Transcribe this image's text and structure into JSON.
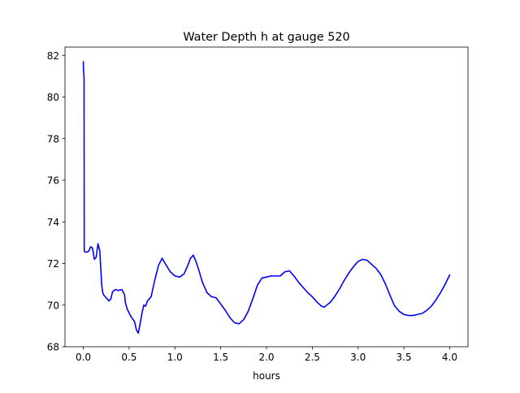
{
  "chart_data": {
    "type": "line",
    "title": "Water Depth h at gauge 520",
    "xlabel": "hours",
    "ylabel": "",
    "xlim": [
      -0.2,
      4.2
    ],
    "ylim": [
      68,
      82.4
    ],
    "xticks": [
      0.0,
      0.5,
      1.0,
      1.5,
      2.0,
      2.5,
      3.0,
      3.5,
      4.0
    ],
    "xtick_labels": [
      "0.0",
      "0.5",
      "1.0",
      "1.5",
      "2.0",
      "2.5",
      "3.0",
      "3.5",
      "4.0"
    ],
    "yticks": [
      68,
      70,
      72,
      74,
      76,
      78,
      80,
      82
    ],
    "ytick_labels": [
      "68",
      "70",
      "72",
      "74",
      "76",
      "78",
      "80",
      "82"
    ],
    "grid": false,
    "legend": "none",
    "series": [
      {
        "color": "#0000ff",
        "x": [
          0.0,
          0.003,
          0.006,
          0.008,
          0.01,
          0.02,
          0.04,
          0.06,
          0.08,
          0.1,
          0.12,
          0.14,
          0.16,
          0.18,
          0.2,
          0.21,
          0.22,
          0.24,
          0.26,
          0.28,
          0.3,
          0.32,
          0.35,
          0.38,
          0.42,
          0.45,
          0.46,
          0.48,
          0.52,
          0.56,
          0.58,
          0.6,
          0.62,
          0.64,
          0.66,
          0.68,
          0.7,
          0.72,
          0.74,
          0.76,
          0.78,
          0.82,
          0.86,
          0.88,
          0.9,
          0.95,
          1.0,
          1.05,
          1.1,
          1.14,
          1.17,
          1.2,
          1.23,
          1.26,
          1.3,
          1.35,
          1.4,
          1.45,
          1.5,
          1.55,
          1.6,
          1.65,
          1.7,
          1.75,
          1.8,
          1.85,
          1.9,
          1.95,
          2.0,
          2.05,
          2.1,
          2.15,
          2.2,
          2.25,
          2.3,
          2.35,
          2.4,
          2.45,
          2.5,
          2.55,
          2.6,
          2.63,
          2.7,
          2.75,
          2.8,
          2.85,
          2.9,
          2.95,
          3.0,
          3.05,
          3.1,
          3.15,
          3.2,
          3.25,
          3.3,
          3.35,
          3.4,
          3.45,
          3.5,
          3.55,
          3.6,
          3.65,
          3.7,
          3.75,
          3.8,
          3.85,
          3.9,
          3.95,
          4.0
        ],
        "y": [
          81.7,
          81.2,
          81.1,
          80.9,
          72.6,
          72.55,
          72.55,
          72.6,
          72.8,
          72.75,
          72.2,
          72.3,
          72.95,
          72.6,
          71.0,
          70.65,
          70.5,
          70.4,
          70.3,
          70.2,
          70.3,
          70.65,
          70.75,
          70.7,
          70.75,
          70.5,
          70.1,
          69.8,
          69.45,
          69.2,
          68.8,
          68.65,
          69.1,
          69.6,
          70.0,
          69.95,
          70.2,
          70.3,
          70.4,
          70.8,
          71.2,
          71.9,
          72.25,
          72.1,
          71.95,
          71.6,
          71.4,
          71.35,
          71.5,
          71.9,
          72.25,
          72.4,
          72.1,
          71.7,
          71.1,
          70.6,
          70.4,
          70.35,
          70.05,
          69.75,
          69.4,
          69.15,
          69.1,
          69.3,
          69.7,
          70.3,
          70.95,
          71.3,
          71.35,
          71.4,
          71.4,
          71.4,
          71.6,
          71.65,
          71.4,
          71.1,
          70.85,
          70.6,
          70.4,
          70.15,
          69.95,
          69.9,
          70.15,
          70.45,
          70.8,
          71.2,
          71.55,
          71.85,
          72.1,
          72.2,
          72.15,
          71.95,
          71.75,
          71.45,
          71.0,
          70.45,
          69.95,
          69.7,
          69.55,
          69.5,
          69.5,
          69.55,
          69.6,
          69.75,
          69.95,
          70.25,
          70.6,
          71.0,
          71.45
        ]
      }
    ]
  }
}
